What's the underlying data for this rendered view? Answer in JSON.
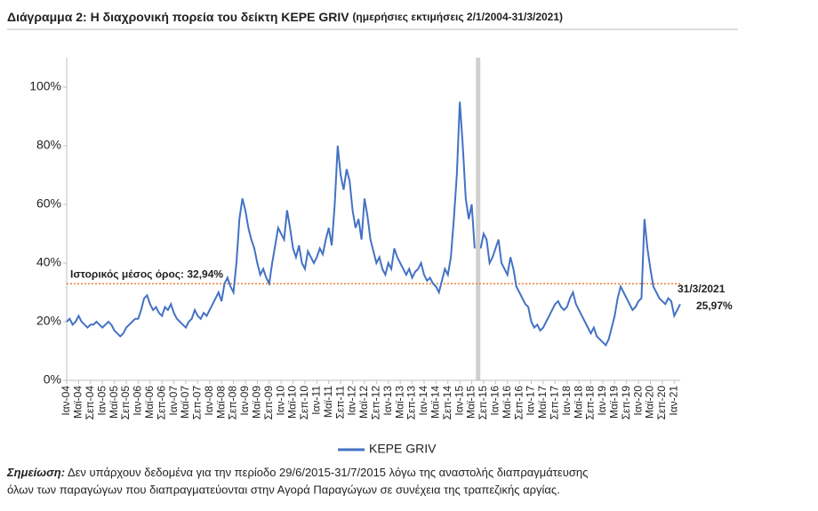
{
  "chart_data": {
    "type": "line",
    "title": "Διάγραμμα 2: Η διαχρονική πορεία του δείκτη KEPE GRIV",
    "subtitle": "(ημερήσιες εκτιμήσεις 2/1/2004-31/3/2021)",
    "categories": [
      "Ιαν-04",
      null,
      null,
      null,
      "Μαϊ-04",
      null,
      null,
      null,
      "Σεπ-04",
      null,
      null,
      null,
      "Ιαν-05",
      null,
      null,
      null,
      "Μαϊ-05",
      null,
      null,
      null,
      "Σεπ-05",
      null,
      null,
      null,
      "Ιαν-06",
      null,
      null,
      null,
      "Μαϊ-06",
      null,
      null,
      null,
      "Σεπ-06",
      null,
      null,
      null,
      "Ιαν-07",
      null,
      null,
      null,
      "Μαϊ-07",
      null,
      null,
      null,
      "Σεπ-07",
      null,
      null,
      null,
      "Ιαν-08",
      null,
      null,
      null,
      "Μαϊ-08",
      null,
      null,
      null,
      "Σεπ-08",
      null,
      null,
      null,
      "Ιαν-09",
      null,
      null,
      null,
      "Μαϊ-09",
      null,
      null,
      null,
      "Σεπ-09",
      null,
      null,
      null,
      "Ιαν-10",
      null,
      null,
      null,
      "Μαϊ-10",
      null,
      null,
      null,
      "Σεπ-10",
      null,
      null,
      null,
      "Ιαν-11",
      null,
      null,
      null,
      "Μαϊ-11",
      null,
      null,
      null,
      "Σεπ-11",
      null,
      null,
      null,
      "Ιαν-12",
      null,
      null,
      null,
      "Μαϊ-12",
      null,
      null,
      null,
      "Σεπ-12",
      null,
      null,
      null,
      "Ιαν-13",
      null,
      null,
      null,
      "Μαϊ-13",
      null,
      null,
      null,
      "Σεπ-13",
      null,
      null,
      null,
      "Ιαν-14",
      null,
      null,
      null,
      "Μαϊ-14",
      null,
      null,
      null,
      "Σεπ-14",
      null,
      null,
      null,
      "Ιαν-15",
      null,
      null,
      null,
      "Μαϊ-15",
      null,
      null,
      null,
      "Σεπ-15",
      null,
      null,
      null,
      "Ιαν-16",
      null,
      null,
      null,
      "Μαϊ-16",
      null,
      null,
      null,
      "Σεπ-16",
      null,
      null,
      null,
      "Ιαν-17",
      null,
      null,
      null,
      "Μαϊ-17",
      null,
      null,
      null,
      "Σεπ-17",
      null,
      null,
      null,
      "Ιαν-18",
      null,
      null,
      null,
      "Μαϊ-18",
      null,
      null,
      null,
      "Σεπ-18",
      null,
      null,
      null,
      "Ιαν-19",
      null,
      null,
      null,
      "Μαϊ-19",
      null,
      null,
      null,
      "Σεπ-19",
      null,
      null,
      null,
      "Ιαν-20",
      null,
      null,
      null,
      "Μαϊ-20",
      null,
      null,
      null,
      "Σεπ-20",
      null,
      null,
      null,
      "Ιαν-21",
      null,
      null
    ],
    "series": [
      {
        "name": "KEPE GRIV",
        "color": "#4472c4",
        "values": [
          20,
          21,
          19,
          20,
          22,
          20,
          19,
          18,
          19,
          19,
          20,
          19,
          18,
          19,
          20,
          19,
          17,
          16,
          15,
          16,
          18,
          19,
          20,
          21,
          21,
          24,
          28,
          29,
          26,
          24,
          25,
          23,
          22,
          25,
          24,
          26,
          23,
          21,
          20,
          19,
          18,
          20,
          21,
          24,
          22,
          21,
          23,
          22,
          24,
          26,
          28,
          30,
          27,
          33,
          35,
          32,
          30,
          40,
          55,
          62,
          58,
          52,
          48,
          45,
          40,
          36,
          38,
          35,
          33,
          40,
          46,
          52,
          50,
          48,
          58,
          52,
          45,
          42,
          46,
          40,
          38,
          44,
          42,
          40,
          42,
          45,
          43,
          48,
          52,
          46,
          60,
          80,
          70,
          65,
          72,
          68,
          58,
          52,
          55,
          48,
          62,
          56,
          48,
          44,
          40,
          42,
          38,
          36,
          40,
          38,
          45,
          42,
          40,
          38,
          36,
          38,
          35,
          37,
          38,
          40,
          36,
          34,
          35,
          33,
          32,
          30,
          34,
          38,
          36,
          42,
          55,
          70,
          95,
          80,
          62,
          55,
          60,
          45,
          null,
          45,
          50,
          48,
          40,
          42,
          45,
          48,
          40,
          38,
          36,
          42,
          38,
          32,
          30,
          28,
          26,
          25,
          20,
          18,
          19,
          17,
          18,
          20,
          22,
          24,
          26,
          27,
          25,
          24,
          25,
          28,
          30,
          26,
          24,
          22,
          20,
          18,
          16,
          18,
          15,
          14,
          13,
          12,
          14,
          18,
          22,
          28,
          32,
          30,
          28,
          26,
          24,
          25,
          27,
          28,
          55,
          45,
          38,
          32,
          30,
          28,
          27,
          26,
          28,
          27,
          22,
          24,
          25.97
        ]
      }
    ],
    "ylim": [
      0,
      110
    ],
    "yticks": [
      {
        "value": 0,
        "label": "0%"
      },
      {
        "value": 20,
        "label": "20%"
      },
      {
        "value": 40,
        "label": "40%"
      },
      {
        "value": 60,
        "label": "60%"
      },
      {
        "value": 80,
        "label": "80%"
      },
      {
        "value": 100,
        "label": "100%"
      }
    ],
    "mean": {
      "value": 32.94,
      "label": "Ιστορικός μέσος όρος: 32,94%",
      "color": "#ed7d31"
    },
    "last_point": {
      "date": "31/3/2021",
      "label": "25,97%"
    },
    "note": {
      "prefix": "Σημείωση:",
      "line1": "Δεν υπάρχουν δεδομένα για την περίοδο 29/6/2015-31/7/2015 λόγω της αναστολής διαπραγμάτευσης",
      "line2": "όλων των παραγώγων που διαπραγματεύονται στην Αγορά Παραγώγων σε συνέχεια της τραπεζικής αργίας."
    },
    "grid": false
  }
}
